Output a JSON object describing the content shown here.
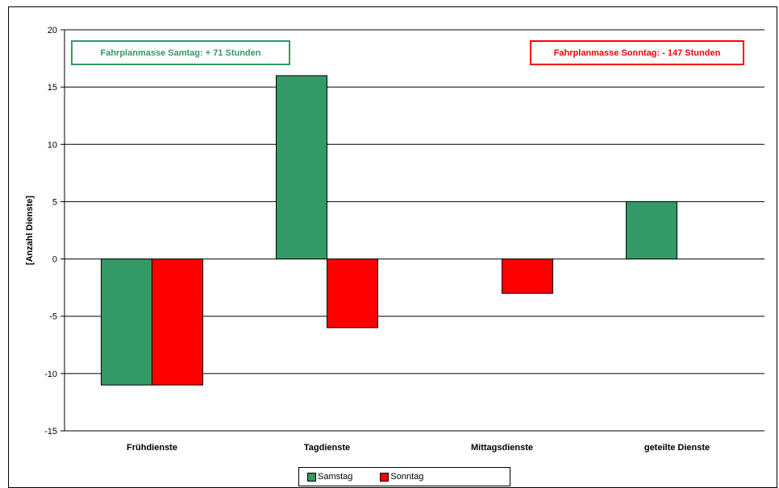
{
  "chart_data": {
    "type": "bar",
    "categories": [
      "Frühdienste",
      "Tagdienste",
      "Mittagsdienste",
      "geteilte Dienste"
    ],
    "series": [
      {
        "name": "Samstag",
        "values": [
          -11,
          16,
          0,
          5
        ],
        "color": "#339966"
      },
      {
        "name": "Sonntag",
        "values": [
          -11,
          -6,
          -3,
          0
        ],
        "color": "#ff0000"
      }
    ],
    "ylabel": "[Anzahl Dienste]",
    "xlabel": "",
    "ylim": [
      -15,
      20
    ],
    "yticks": [
      20,
      15,
      10,
      5,
      0,
      -5,
      -10,
      -15
    ],
    "grid": true,
    "legend": "bottom"
  },
  "annotations": {
    "saturday": {
      "text": "Fahrplanmasse Samtag: + 71 Stunden",
      "color": "#339966"
    },
    "sunday": {
      "text": "Fahrplanmasse Sonntag: - 147 Stunden",
      "color": "#ff0000"
    }
  }
}
